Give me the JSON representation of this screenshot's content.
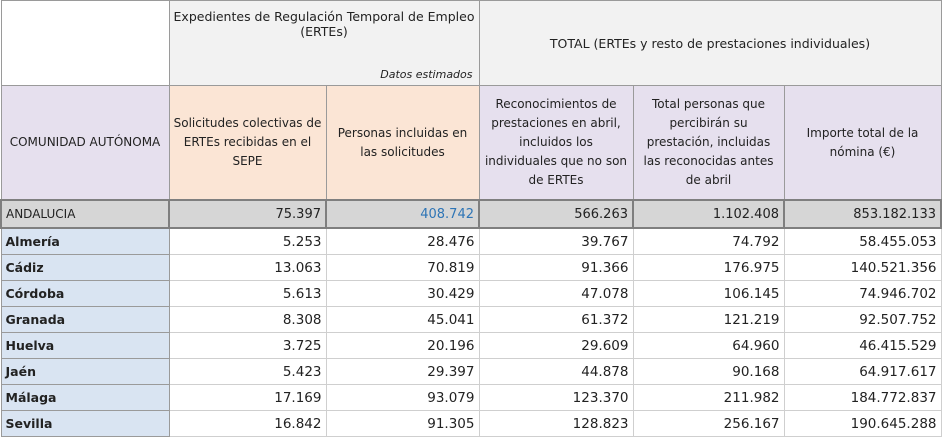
{
  "header": {
    "ertes_title": "Expedientes de Regulación Temporal de Empleo (ERTEs)",
    "ertes_note": "Datos estimados",
    "total_title": "TOTAL (ERTEs y resto de prestaciones individuales)"
  },
  "columns": [
    "COMUNIDAD AUTÓNOMA",
    "Solicitudes colectivas de ERTEs recibidas en el SEPE",
    "Personas incluidas en las solicitudes",
    "Reconocimientos de prestaciones en abril, incluidos los individuales que no son de ERTEs",
    "Total personas que percibirán su prestación, incluidas las reconocidas antes de abril",
    "Importe total de la nómina (€)"
  ],
  "rows": [
    [
      "ANDALUCIA",
      "75.397",
      "408.742",
      "566.263",
      "1.102.408",
      "853.182.133"
    ],
    [
      "Almería",
      "5.253",
      "28.476",
      "39.767",
      "74.792",
      "58.455.053"
    ],
    [
      "Cádiz",
      "13.063",
      "70.819",
      "91.366",
      "176.975",
      "140.521.356"
    ],
    [
      "Córdoba",
      "5.613",
      "30.429",
      "47.078",
      "106.145",
      "74.946.702"
    ],
    [
      "Granada",
      "8.308",
      "45.041",
      "61.372",
      "121.219",
      "92.507.752"
    ],
    [
      "Huelva",
      "3.725",
      "20.196",
      "29.609",
      "64.960",
      "46.415.529"
    ],
    [
      "Jaén",
      "5.423",
      "29.397",
      "44.878",
      "90.168",
      "64.917.617"
    ],
    [
      "Málaga",
      "17.169",
      "93.079",
      "123.370",
      "211.982",
      "184.772.837"
    ],
    [
      "Sevilla",
      "16.842",
      "91.305",
      "128.823",
      "256.167",
      "190.645.288"
    ]
  ]
}
